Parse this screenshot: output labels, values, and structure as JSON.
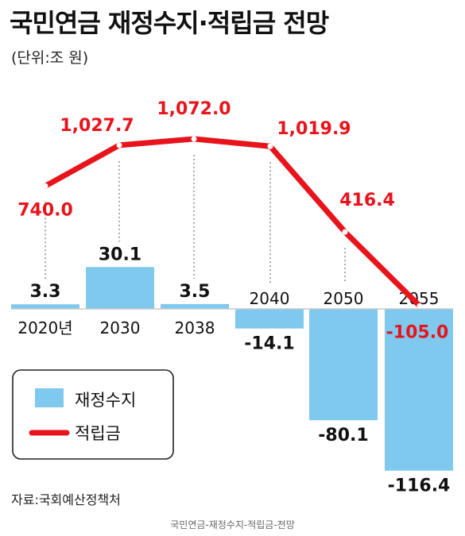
{
  "header": {
    "title": "국민연금 재정수지·적립금 전망",
    "unit": "(단위:조 원)"
  },
  "footer": {
    "source": "자료:국회예산정책처",
    "caption": "국민연금-재정수지-적립금-전망"
  },
  "chart_data": {
    "type": "bar",
    "categories": [
      "2020년",
      "2030",
      "2038",
      "2040",
      "2050",
      "2055"
    ],
    "series": [
      {
        "name": "재정수지",
        "type": "bar",
        "color": "#7fc8ee",
        "values": [
          3.3,
          30.1,
          3.5,
          -14.1,
          -80.1,
          -116.4
        ],
        "labels": [
          "3.3",
          "30.1",
          "3.5",
          "-14.1",
          "-80.1",
          "-116.4"
        ]
      },
      {
        "name": "적립금",
        "type": "line",
        "color": "#e8141c",
        "values": [
          740.0,
          1027.7,
          1072.0,
          1019.9,
          416.4,
          -105.0
        ],
        "labels": [
          "740.0",
          "1,027.7",
          "1,072.0",
          "1,019.9",
          "416.4",
          "-105.0"
        ]
      }
    ],
    "legend_position": "bottom-left"
  }
}
